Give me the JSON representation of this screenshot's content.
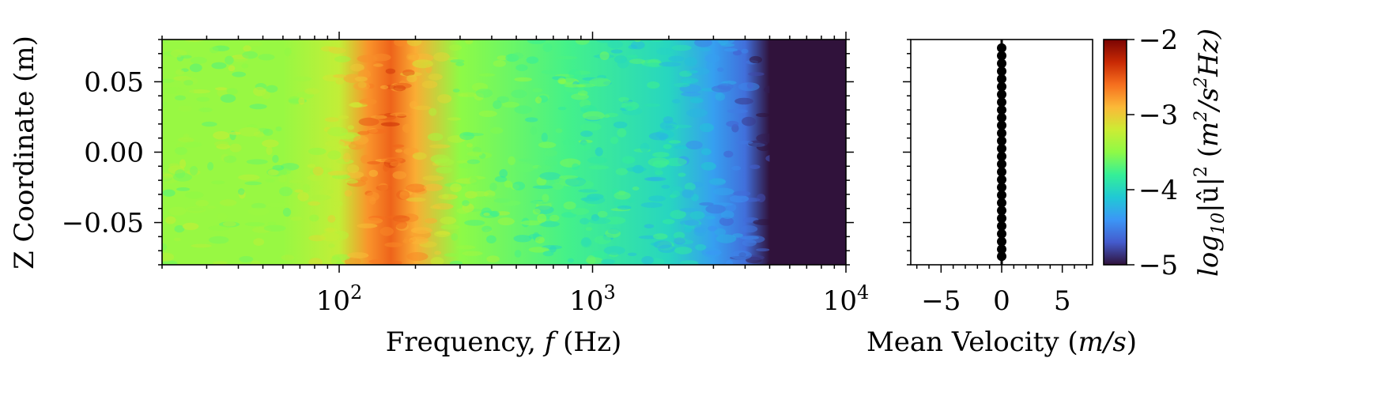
{
  "chart_data": [
    {
      "type": "heatmap",
      "xlabel": "Frequency, ",
      "xlabel_var": "f",
      "xlabel_unit": " (Hz)",
      "ylabel": "Z Coordinate (m)",
      "x_scale": "log",
      "xlim": [
        20,
        10000
      ],
      "ylim": [
        -0.08,
        0.08
      ],
      "x_ticks": [
        {
          "value": 100,
          "base": "10",
          "exp": "2"
        },
        {
          "value": 1000,
          "base": "10",
          "exp": "3"
        },
        {
          "value": 10000,
          "base": "10",
          "exp": "4"
        }
      ],
      "y_ticks": [
        {
          "value": 0.05,
          "label": "0.05"
        },
        {
          "value": 0.0,
          "label": "0.00"
        },
        {
          "value": -0.05,
          "label": "−0.05"
        }
      ],
      "colormap": "turbo",
      "color_range": [
        -5,
        -2
      ],
      "profile_points": [
        {
          "f": 20,
          "level": -3.45
        },
        {
          "f": 60,
          "level": -3.45
        },
        {
          "f": 100,
          "level": -3.25
        },
        {
          "f": 130,
          "level": -2.75
        },
        {
          "f": 160,
          "level": -2.55
        },
        {
          "f": 200,
          "level": -2.85
        },
        {
          "f": 300,
          "level": -3.5
        },
        {
          "f": 800,
          "level": -3.75
        },
        {
          "f": 2000,
          "level": -4.0
        },
        {
          "f": 3000,
          "level": -4.35
        },
        {
          "f": 4000,
          "level": -4.6
        },
        {
          "f": 5000,
          "level": -5.0
        },
        {
          "f": 10000,
          "level": -5.0
        }
      ]
    },
    {
      "type": "scatter",
      "xlabel": "Mean Velocity (",
      "xlabel_var": "m/s",
      "xlabel_close": ")",
      "xlim": [
        -7.5,
        7.5
      ],
      "ylim": [
        -0.08,
        0.08
      ],
      "x_ticks": [
        {
          "value": -5,
          "label": "−5"
        },
        {
          "value": 0,
          "label": "0"
        },
        {
          "value": 5,
          "label": "5"
        }
      ],
      "points": {
        "x": [
          0,
          0,
          0,
          0,
          0,
          0,
          0,
          0,
          0,
          0,
          0,
          0,
          0,
          0,
          0,
          0,
          0,
          0,
          0,
          0,
          0,
          0,
          0,
          0,
          0,
          0,
          0,
          0
        ],
        "y": [
          0.074,
          0.0685,
          0.063,
          0.0575,
          0.052,
          0.0465,
          0.041,
          0.0355,
          0.03,
          0.0245,
          0.019,
          0.0135,
          0.008,
          0.0025,
          -0.003,
          -0.0085,
          -0.014,
          -0.0195,
          -0.025,
          -0.0305,
          -0.036,
          -0.0415,
          -0.047,
          -0.0525,
          -0.058,
          -0.0635,
          -0.069,
          -0.074
        ]
      },
      "marker_color": "#000000"
    }
  ],
  "colorbar": {
    "label_prefix": "log",
    "label_sub": "10",
    "label_mid": "|û|",
    "label_sup": "2",
    "label_unit_open": " (",
    "label_unit_m": "m",
    "label_unit_m_sup": "2",
    "label_unit_s": "/s",
    "label_unit_s_sup": "2",
    "label_unit_hz": "Hz)",
    "range": [
      -5,
      -2
    ],
    "ticks": [
      {
        "value": -2,
        "label": "−2"
      },
      {
        "value": -3,
        "label": "−3"
      },
      {
        "value": -4,
        "label": "−4"
      },
      {
        "value": -5,
        "label": "−5"
      }
    ]
  }
}
